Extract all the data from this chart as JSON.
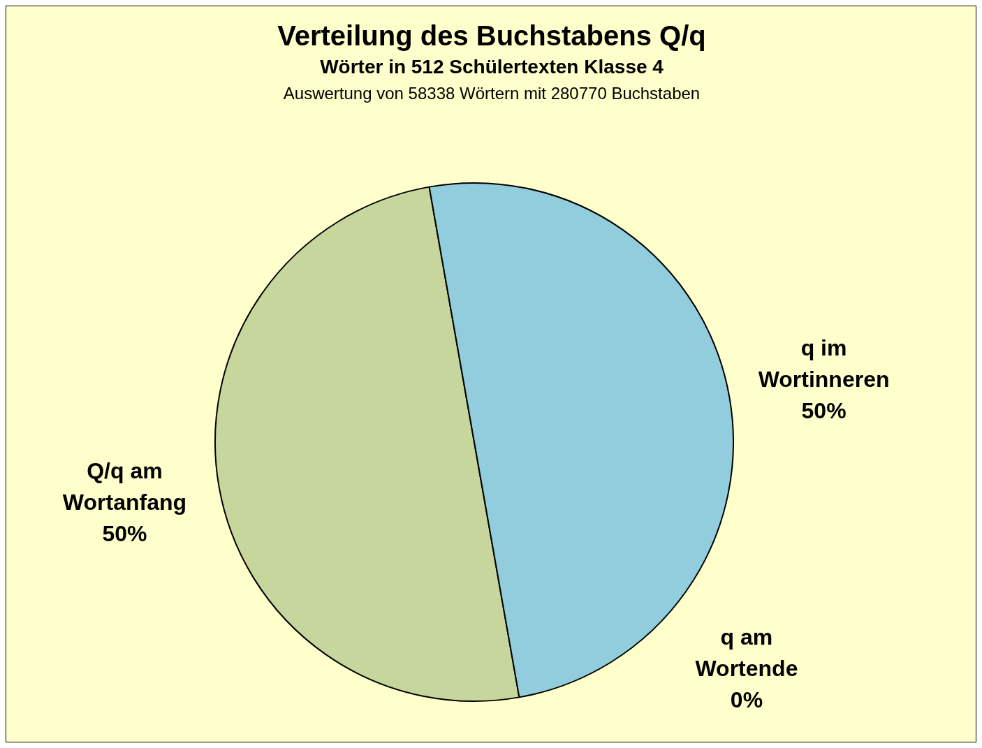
{
  "chart_data": {
    "type": "pie",
    "title": "Verteilung des Buchstabens Q/q",
    "subtitle": "Wörter in 512 Schülertexten Klasse 4",
    "annotations": [
      "Auswertung von 58338 Wörtern mit 280770 Buchstaben"
    ],
    "categories": [
      "Q/q am Wortanfang",
      "q im Wortinneren",
      "q am Wortende"
    ],
    "values": [
      50,
      50,
      0
    ],
    "colors": [
      "#c6d69c",
      "#92cddd",
      "#e0e0e0"
    ],
    "value_labels": [
      "50%",
      "50%",
      "0%"
    ],
    "legend": false
  }
}
